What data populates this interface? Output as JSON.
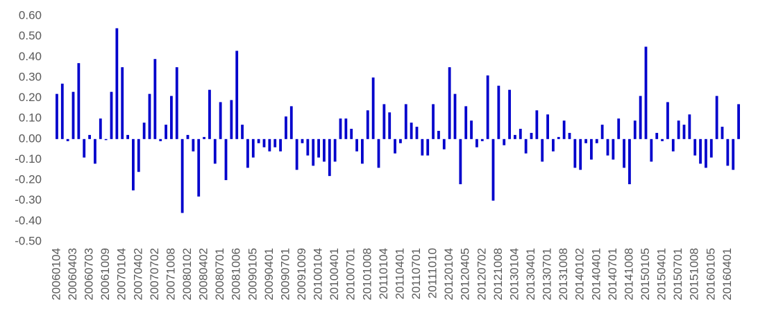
{
  "chart_data": {
    "type": "bar",
    "color": "#0000cc",
    "categories": [
      "20060104",
      null,
      null,
      "20060403",
      null,
      null,
      "20060703",
      null,
      null,
      "20061009",
      null,
      null,
      "20070104",
      null,
      null,
      "20070402",
      null,
      null,
      "20070702",
      null,
      null,
      "20071008",
      null,
      null,
      "20080102",
      null,
      null,
      "20080402",
      null,
      null,
      "20080701",
      null,
      null,
      "20081006",
      null,
      null,
      "20090105",
      null,
      null,
      "20090401",
      null,
      null,
      "20090701",
      null,
      null,
      "20091009",
      null,
      null,
      "20100104",
      null,
      null,
      "20100401",
      null,
      null,
      "20100701",
      null,
      null,
      "20101008",
      null,
      null,
      "20110104",
      null,
      null,
      "20110401",
      null,
      null,
      "20110701",
      null,
      null,
      "20111010",
      null,
      null,
      "20120104",
      null,
      null,
      "20120405",
      null,
      null,
      "20120702",
      null,
      null,
      "20121008",
      null,
      null,
      "20130104",
      null,
      null,
      "20130401",
      null,
      null,
      "20130701",
      null,
      null,
      "20131008",
      null,
      null,
      "20140102",
      null,
      null,
      "20140401",
      null,
      null,
      "20140701",
      null,
      null,
      "20141008",
      null,
      null,
      "20150105",
      null,
      null,
      "20150401",
      null,
      null,
      "20150701",
      null,
      null,
      "20151008",
      null,
      null,
      "20160105",
      null,
      null,
      "20160401",
      null,
      null
    ],
    "values": [
      0.22,
      0.27,
      -0.01,
      0.23,
      0.37,
      -0.09,
      0.02,
      -0.12,
      0.1,
      -0.005,
      0.23,
      0.54,
      0.35,
      0.02,
      -0.25,
      -0.16,
      0.08,
      0.22,
      0.39,
      -0.01,
      0.07,
      0.21,
      0.35,
      -0.36,
      0.02,
      -0.06,
      -0.28,
      0.01,
      0.24,
      -0.12,
      0.18,
      -0.2,
      0.19,
      0.43,
      0.07,
      -0.14,
      -0.09,
      -0.02,
      -0.04,
      -0.06,
      -0.04,
      -0.06,
      0.11,
      0.16,
      -0.15,
      -0.02,
      -0.08,
      -0.13,
      -0.09,
      -0.11,
      -0.18,
      -0.11,
      0.1,
      0.1,
      0.05,
      -0.06,
      -0.12,
      0.14,
      0.3,
      -0.14,
      0.17,
      0.13,
      -0.07,
      -0.02,
      0.17,
      0.08,
      0.06,
      -0.08,
      -0.08,
      0.17,
      0.04,
      -0.05,
      0.35,
      0.22,
      -0.22,
      0.16,
      0.09,
      -0.04,
      -0.01,
      0.31,
      -0.3,
      0.26,
      -0.03,
      0.24,
      0.02,
      0.05,
      -0.07,
      0.03,
      0.14,
      -0.11,
      0.12,
      -0.06,
      0.01,
      0.09,
      0.03,
      -0.14,
      -0.15,
      -0.02,
      -0.1,
      -0.02,
      0.07,
      -0.08,
      -0.1,
      0.1,
      -0.14,
      -0.22,
      0.09,
      0.21,
      0.45,
      -0.11,
      0.03,
      -0.01,
      0.18,
      -0.06,
      0.09,
      0.07,
      0.12,
      -0.08,
      -0.12,
      -0.14,
      -0.09,
      0.21,
      0.06,
      -0.13,
      -0.15,
      0.17
    ],
    "ylim": [
      -0.5,
      0.6
    ],
    "yticks": [
      {
        "value": 0.6,
        "label": "0.60"
      },
      {
        "value": 0.5,
        "label": "0.50"
      },
      {
        "value": 0.4,
        "label": "0.40"
      },
      {
        "value": 0.3,
        "label": "0.30"
      },
      {
        "value": 0.2,
        "label": "0.20"
      },
      {
        "value": 0.1,
        "label": "0.10"
      },
      {
        "value": 0,
        "label": "0.00"
      },
      {
        "value": -0.1,
        "label": "-0.10"
      },
      {
        "value": -0.2,
        "label": "-0.20"
      },
      {
        "value": -0.3,
        "label": "-0.30"
      },
      {
        "value": -0.4,
        "label": "-0.40"
      },
      {
        "value": -0.5,
        "label": "-0.50"
      }
    ],
    "grid": false
  }
}
